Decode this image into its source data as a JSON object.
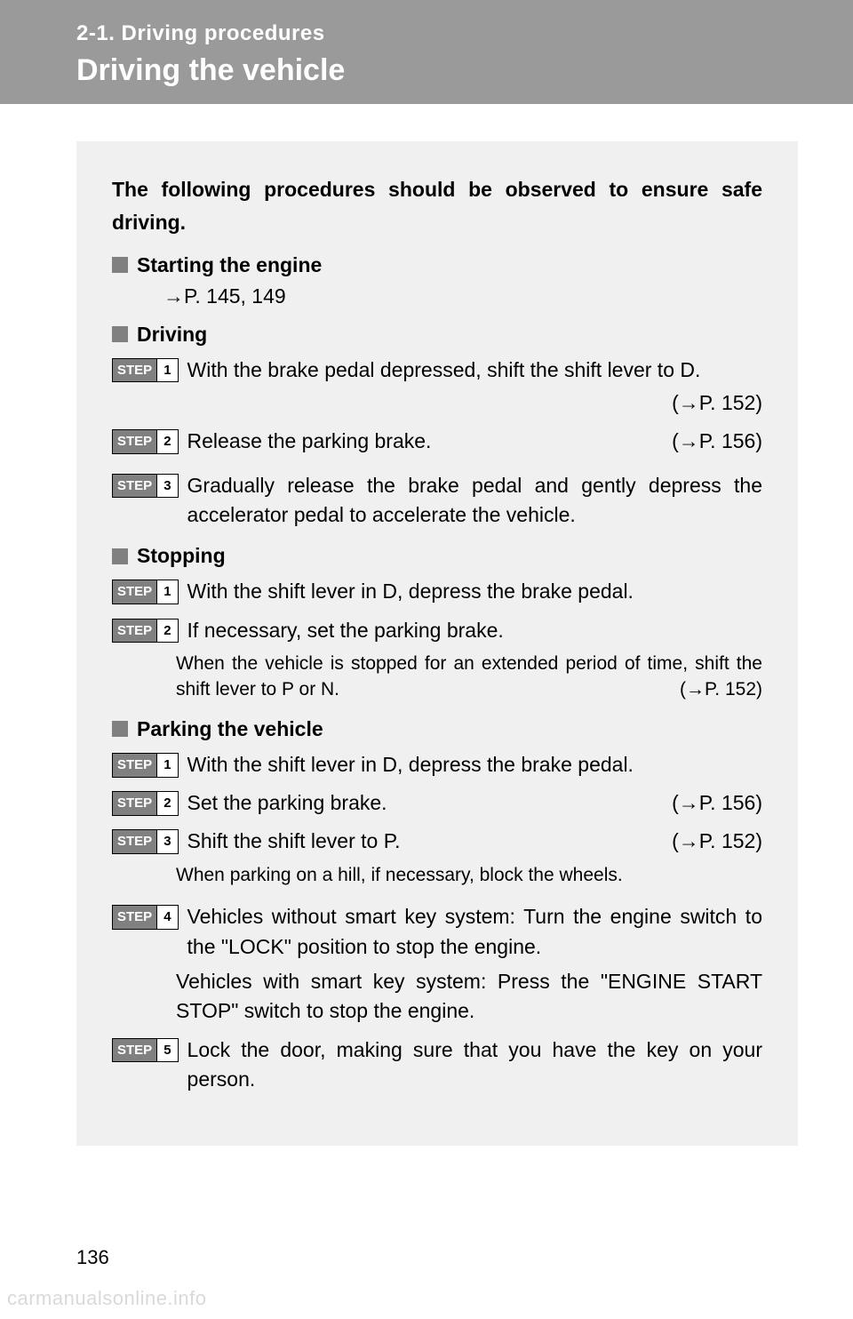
{
  "header": {
    "section": "2-1. Driving procedures",
    "title": "Driving the vehicle"
  },
  "intro": "The following procedures should be observed to ensure safe driving.",
  "starting": {
    "heading": "Starting the engine",
    "ref": "→P. 145, 149"
  },
  "driving": {
    "heading": "Driving",
    "steps": [
      {
        "n": "1",
        "text": "With the brake pedal depressed, shift the shift lever to D.",
        "ref": "(→P. 152)"
      },
      {
        "n": "2",
        "text": "Release the parking brake.",
        "ref": "(→P. 156)"
      },
      {
        "n": "3",
        "text": "Gradually release the brake pedal and gently depress the accelerator pedal to accelerate the vehicle.",
        "ref": ""
      }
    ]
  },
  "stopping": {
    "heading": "Stopping",
    "steps": [
      {
        "n": "1",
        "text": "With the shift lever in D, depress the brake pedal."
      },
      {
        "n": "2",
        "text": "If necessary, set the parking brake."
      }
    ],
    "note": "When the vehicle is stopped for an extended period of time, shift the shift lever to P or N.",
    "note_ref": "(→P. 152)"
  },
  "parking": {
    "heading": "Parking the vehicle",
    "steps": [
      {
        "n": "1",
        "text": "With the shift lever in D, depress the brake pedal.",
        "ref": ""
      },
      {
        "n": "2",
        "text": "Set the parking brake.",
        "ref": "(→P. 156)"
      },
      {
        "n": "3",
        "text": "Shift the shift lever to P.",
        "ref": "(→P. 152)"
      }
    ],
    "note1": "When parking on a hill, if necessary, block the wheels.",
    "step4": {
      "n": "4",
      "text": "Vehicles without smart key system: Turn the engine switch to the \"LOCK\" position to stop the engine."
    },
    "step4b": "Vehicles with smart key system: Press the \"ENGINE START STOP\" switch to stop the engine.",
    "step5": {
      "n": "5",
      "text": "Lock the door, making sure that you have the key on your person."
    }
  },
  "ui": {
    "step_label": "STEP"
  },
  "pageNumber": "136",
  "watermark": "carmanualsonline.info"
}
